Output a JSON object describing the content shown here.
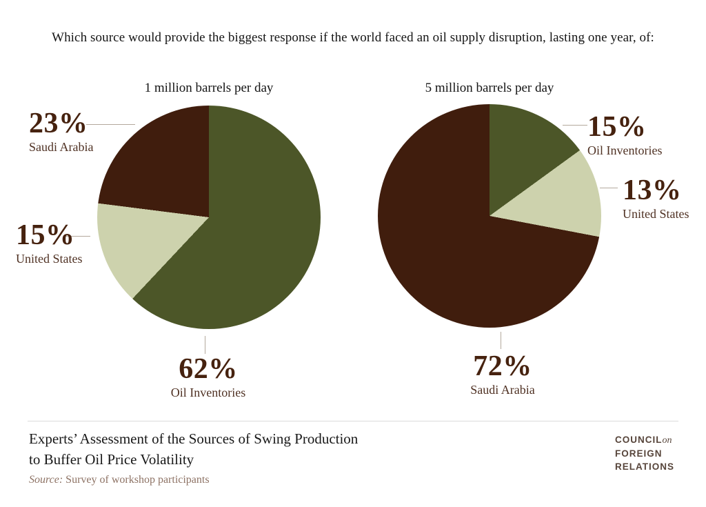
{
  "header": {
    "title": "Which source would provide the biggest response if the world faced an oil supply disruption, lasting one year, of:"
  },
  "chart_data": [
    {
      "type": "pie",
      "title": "1 million barrels per day",
      "start_angle_deg": 0,
      "direction": "clockwise",
      "slices": [
        {
          "label": "Oil Inventories",
          "value_pct": 62,
          "display": "62%",
          "color": "#4c5628"
        },
        {
          "label": "United States",
          "value_pct": 15,
          "display": "15%",
          "color": "#cdd2ad"
        },
        {
          "label": "Saudi Arabia",
          "value_pct": 23,
          "display": "23%",
          "color": "#401d0d"
        }
      ]
    },
    {
      "type": "pie",
      "title": "5 million barrels per day",
      "start_angle_deg": 0,
      "direction": "clockwise",
      "slices": [
        {
          "label": "Oil Inventories",
          "value_pct": 15,
          "display": "15%",
          "color": "#4c5628"
        },
        {
          "label": "United States",
          "value_pct": 13,
          "display": "13%",
          "color": "#cdd2ad"
        },
        {
          "label": "Saudi Arabia",
          "value_pct": 72,
          "display": "72%",
          "color": "#401d0d"
        }
      ]
    }
  ],
  "footer": {
    "title_line1": "Experts’ Assessment of the Sources of Swing Production",
    "title_line2": "to Buffer Oil Price Volatility",
    "source_label": "Source:",
    "source_text": " Survey of workshop participants"
  },
  "logo": {
    "line1_word": "COUNCIL",
    "line1_on": "on",
    "line2": "FOREIGN",
    "line3": "RELATIONS"
  },
  "colors": {
    "saudi_arabia": "#401d0d",
    "united_states": "#cdd2ad",
    "oil_inventories": "#4c5628",
    "percent_text": "#46220f",
    "leader_line": "#b3a89c"
  }
}
